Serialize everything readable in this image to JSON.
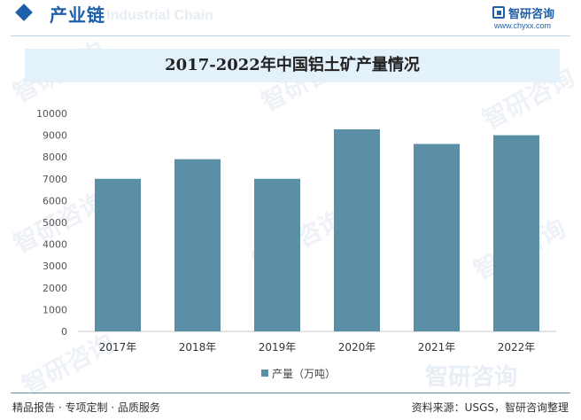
{
  "header": {
    "title": "产业链",
    "ghost_text": "Industrial Chain"
  },
  "logo": {
    "name": "智研咨询",
    "url": "www.chyxx.com"
  },
  "watermark_text": "智研咨询",
  "colors": {
    "brand": "#1f5fa8",
    "bar": "#5b8fa5",
    "title_band": "#e3f1fb"
  },
  "chart_data": {
    "type": "bar",
    "title": "2017-2022年中国铝土矿产量情况",
    "categories": [
      "2017年",
      "2018年",
      "2019年",
      "2020年",
      "2021年",
      "2022年"
    ],
    "series": [
      {
        "name": "产量（万吨）",
        "values": [
          7000,
          7900,
          7000,
          9270,
          8600,
          9000
        ]
      }
    ],
    "ylim": [
      0,
      10000
    ],
    "yticks": [
      0,
      1000,
      2000,
      3000,
      4000,
      5000,
      6000,
      7000,
      8000,
      9000,
      10000
    ],
    "grid": false,
    "legend": "bottom-center"
  },
  "footer": {
    "left": "精品报告 · 专项定制 · 品质服务",
    "right": "资料来源：USGS，智研咨询整理"
  }
}
